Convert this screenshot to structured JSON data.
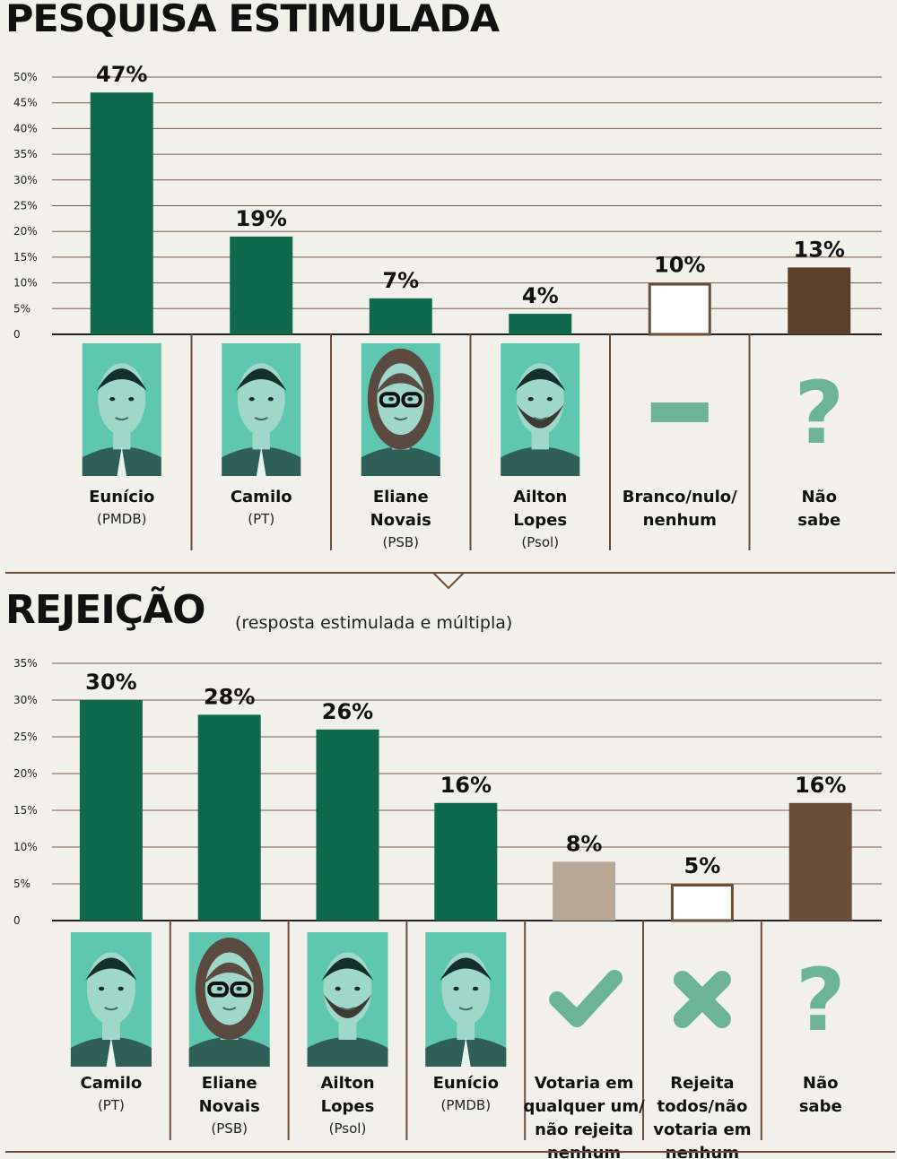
{
  "colors": {
    "candidate": "#0f6a4d",
    "candidate_dark": "#0d5b40",
    "nao_sabe": "#5c3f2a",
    "nao_sabe_light": "#6b4e3a",
    "votaria": "#b8a794",
    "outline": "#6b4e3a",
    "icon": "#6cb39a",
    "photo_bg": "#5fc7b0"
  },
  "chart_data": [
    {
      "type": "bar",
      "title": "PESQUISA ESTIMULADA",
      "ylim": [
        0,
        50
      ],
      "yticks": [
        "0",
        "5%",
        "10%",
        "15%",
        "20%",
        "25%",
        "30%",
        "35%",
        "40%",
        "45%",
        "50%"
      ],
      "grid": true,
      "categories": [
        {
          "name": [
            "Eunício"
          ],
          "party": "(PMDB)",
          "icon": "photo-eunicio"
        },
        {
          "name": [
            "Camilo"
          ],
          "party": "(PT)",
          "icon": "photo-camilo"
        },
        {
          "name": [
            "Eliane",
            "Novais"
          ],
          "party": "(PSB)",
          "icon": "photo-eliane"
        },
        {
          "name": [
            "Ailton",
            "Lopes"
          ],
          "party": "(Psol)",
          "icon": "photo-ailton"
        },
        {
          "name": [
            "Branco/nulo/",
            "nenhum"
          ],
          "party": "",
          "icon": "dash-icon"
        },
        {
          "name": [
            "Não",
            "sabe"
          ],
          "party": "",
          "icon": "question-icon"
        }
      ],
      "values": [
        47,
        19,
        7,
        4,
        10,
        13
      ],
      "value_labels": [
        "47%",
        "19%",
        "7%",
        "4%",
        "10%",
        "13%"
      ],
      "styles": [
        "candidate",
        "candidate",
        "candidate",
        "candidate",
        "outline",
        "nao_sabe"
      ]
    },
    {
      "type": "bar",
      "title": "REJEIÇÃO",
      "subtitle": "(resposta estimulada e múltipla)",
      "ylim": [
        0,
        35
      ],
      "yticks": [
        "0",
        "5%",
        "10%",
        "15%",
        "20%",
        "25%",
        "30%",
        "35%"
      ],
      "grid": true,
      "categories": [
        {
          "name": [
            "Camilo"
          ],
          "party": "(PT)",
          "icon": "photo-camilo"
        },
        {
          "name": [
            "Eliane",
            "Novais"
          ],
          "party": "(PSB)",
          "icon": "photo-eliane"
        },
        {
          "name": [
            "Ailton",
            "Lopes"
          ],
          "party": "(Psol)",
          "icon": "photo-ailton"
        },
        {
          "name": [
            "Eunício"
          ],
          "party": "(PMDB)",
          "icon": "photo-eunicio"
        },
        {
          "name": [
            "Votaria em",
            "qualquer um/",
            "não rejeita",
            "nenhum"
          ],
          "party": "",
          "icon": "check-icon"
        },
        {
          "name": [
            "Rejeita",
            "todos/não",
            "votaria em",
            "nenhum"
          ],
          "party": "",
          "icon": "x-icon"
        },
        {
          "name": [
            "Não",
            "sabe"
          ],
          "party": "",
          "icon": "question-icon"
        }
      ],
      "values": [
        30,
        28,
        26,
        16,
        8,
        5,
        16
      ],
      "value_labels": [
        "30%",
        "28%",
        "26%",
        "16%",
        "8%",
        "5%",
        "16%"
      ],
      "styles": [
        "candidate",
        "candidate",
        "candidate",
        "candidate",
        "votaria",
        "outline",
        "nao_sabe_light"
      ]
    }
  ]
}
